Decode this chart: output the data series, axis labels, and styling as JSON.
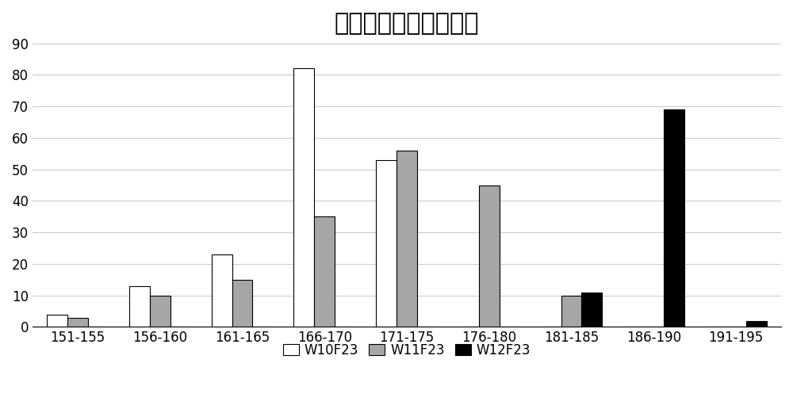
{
  "title": "不同群体开花期分布图",
  "categories": [
    "151-155",
    "156-160",
    "161-165",
    "166-170",
    "171-175",
    "176-180",
    "181-185",
    "186-190",
    "191-195"
  ],
  "series": {
    "W10F23": [
      4,
      13,
      23,
      82,
      53,
      0,
      0,
      0,
      0
    ],
    "W11F23": [
      3,
      10,
      15,
      35,
      56,
      45,
      10,
      0,
      0
    ],
    "W12F23": [
      0,
      0,
      0,
      0,
      0,
      0,
      11,
      69,
      2
    ]
  },
  "colors": {
    "W10F23": "#FFFFFF",
    "W11F23": "#A6A6A6",
    "W12F23": "#000000"
  },
  "edge_colors": {
    "W10F23": "#000000",
    "W11F23": "#000000",
    "W12F23": "#000000"
  },
  "ylim": [
    0,
    90
  ],
  "yticks": [
    0,
    10,
    20,
    30,
    40,
    50,
    60,
    70,
    80,
    90
  ],
  "legend_labels": [
    "W10F23",
    "W11F23",
    "W12F23"
  ],
  "background_color": "#FFFFFF",
  "bar_width": 0.25,
  "title_fontsize": 22,
  "tick_fontsize": 12,
  "legend_fontsize": 12,
  "grid_color": "#CCCCCC",
  "grid_linestyle": "-",
  "grid_linewidth": 0.8
}
